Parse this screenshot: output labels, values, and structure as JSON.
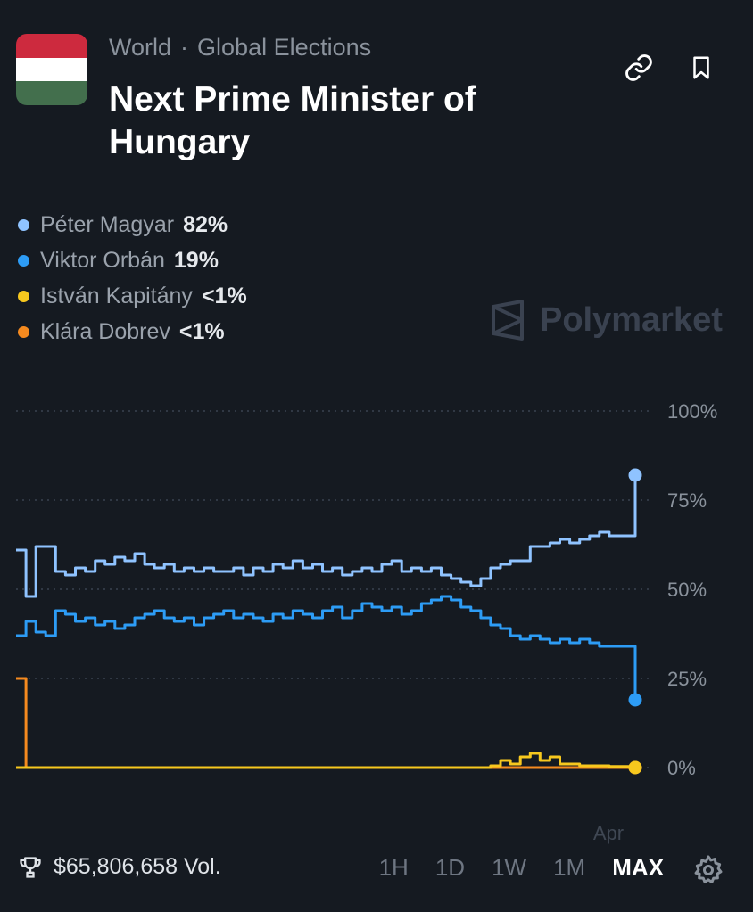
{
  "header": {
    "flag": {
      "colors": [
        "#cd2a3e",
        "#ffffff",
        "#436f4d"
      ]
    },
    "breadcrumb": [
      "World",
      "Global Elections"
    ],
    "breadcrumb_separator": "·",
    "title": "Next Prime Minister of Hungary",
    "icons": [
      "link-icon",
      "bookmark-icon"
    ]
  },
  "legend": [
    {
      "name": "Péter Magyar",
      "value": "82%",
      "color": "#8fc3ff"
    },
    {
      "name": "Viktor Orbán",
      "value": "19%",
      "color": "#2d9cf5"
    },
    {
      "name": "István Kapitány",
      "value": "<1%",
      "color": "#f7c81e"
    },
    {
      "name": "Klára Dobrev",
      "value": "<1%",
      "color": "#f58a1f"
    }
  ],
  "watermark": "Polymarket",
  "chart_data": {
    "type": "line",
    "y_ticks": [
      "100%",
      "75%",
      "50%",
      "25%",
      "0%"
    ],
    "x_ticks": [
      "Apr"
    ],
    "ylim": [
      0,
      100
    ],
    "grid": true,
    "series": [
      {
        "name": "Péter Magyar",
        "color": "#8fc3ff",
        "values": [
          61,
          48,
          62,
          62,
          55,
          54,
          56,
          55,
          58,
          57,
          59,
          58,
          60,
          57,
          56,
          57,
          55,
          56,
          55,
          56,
          55,
          55,
          56,
          54,
          56,
          55,
          57,
          56,
          58,
          56,
          57,
          55,
          56,
          54,
          55,
          56,
          55,
          57,
          58,
          55,
          56,
          55,
          56,
          54,
          53,
          52,
          51,
          53,
          56,
          57,
          58,
          58,
          62,
          62,
          63,
          64,
          63,
          64,
          65,
          66,
          65,
          82
        ]
      },
      {
        "name": "Viktor Orbán",
        "color": "#2d9cf5",
        "values": [
          37,
          41,
          38,
          37,
          44,
          43,
          41,
          42,
          40,
          41,
          39,
          40,
          42,
          43,
          44,
          42,
          41,
          42,
          40,
          42,
          43,
          44,
          42,
          43,
          42,
          41,
          43,
          42,
          44,
          43,
          42,
          44,
          45,
          42,
          44,
          46,
          45,
          44,
          45,
          43,
          44,
          46,
          47,
          48,
          47,
          45,
          44,
          42,
          40,
          39,
          37,
          36,
          37,
          36,
          35,
          36,
          35,
          36,
          35,
          34,
          34,
          19
        ]
      },
      {
        "name": "István Kapitány",
        "color": "#f7c81e",
        "values": [
          0,
          0,
          0,
          0,
          0,
          0,
          0,
          0,
          0,
          0,
          0,
          0,
          0,
          0,
          0,
          0,
          0,
          0,
          0,
          0,
          0,
          0,
          0,
          0,
          0,
          0,
          0,
          0,
          0,
          0,
          0,
          0,
          0,
          0,
          0,
          0,
          0,
          0,
          0,
          0,
          0,
          0,
          0,
          0,
          0,
          0,
          0,
          0,
          0.5,
          2,
          1,
          3,
          4,
          2,
          3,
          1,
          1,
          0.5,
          0.5,
          0.5,
          0.3,
          0
        ]
      },
      {
        "name": "Klára Dobrev",
        "color": "#f58a1f",
        "values": [
          25,
          0,
          0,
          0,
          0,
          0,
          0,
          0,
          0,
          0,
          0,
          0,
          0,
          0,
          0,
          0,
          0,
          0,
          0,
          0,
          0,
          0,
          0,
          0,
          0,
          0,
          0,
          0,
          0,
          0,
          0,
          0,
          0,
          0,
          0,
          0,
          0,
          0,
          0,
          0,
          0,
          0,
          0,
          0,
          0,
          0,
          0,
          0,
          0,
          0,
          0,
          0,
          0,
          0,
          0,
          0,
          0,
          0,
          0,
          0,
          0,
          0
        ]
      }
    ]
  },
  "footer": {
    "volume": "$65,806,658 Vol.",
    "ranges": [
      "1H",
      "1D",
      "1W",
      "1M",
      "MAX"
    ],
    "active_range": "MAX"
  }
}
